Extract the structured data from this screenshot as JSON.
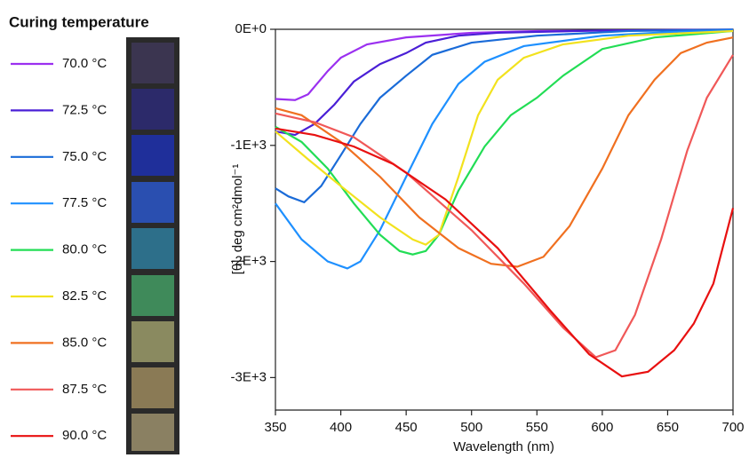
{
  "chart_data": {
    "type": "line",
    "legend_title": "Curing temperature",
    "x_label": "Wavelength (nm)",
    "y_label": "[θ]. deg cm²dmol⁻¹",
    "xlim": [
      350,
      700
    ],
    "xticks": [
      350,
      400,
      450,
      500,
      550,
      600,
      650,
      700
    ],
    "ylim": [
      -3280,
      0
    ],
    "yticks": [
      {
        "value": 0,
        "label": "0E+0"
      },
      {
        "value": -1000,
        "label": "-1E+3"
      },
      {
        "value": -2000,
        "label": "-2E+3"
      },
      {
        "value": -3000,
        "label": "-3E+3"
      }
    ],
    "legend": "left",
    "series": [
      {
        "name": "70.0 °C",
        "color": "#9b30f0",
        "x": [
          350,
          365,
          375,
          390,
          400,
          420,
          450,
          500,
          550,
          700
        ],
        "values": [
          -600,
          -610,
          -560,
          -360,
          -245,
          -130,
          -70,
          -30,
          -15,
          -5
        ]
      },
      {
        "name": "72.5 °C",
        "color": "#4a1fd6",
        "x": [
          350,
          365,
          380,
          395,
          410,
          430,
          450,
          465,
          490,
          520,
          600,
          700
        ],
        "values": [
          -880,
          -910,
          -815,
          -650,
          -450,
          -300,
          -205,
          -115,
          -55,
          -30,
          -10,
          -3
        ]
      },
      {
        "name": "75.0 °C",
        "color": "#1a6bd8",
        "x": [
          350,
          360,
          372,
          385,
          400,
          415,
          430,
          450,
          470,
          500,
          550,
          620,
          700
        ],
        "values": [
          -1370,
          -1440,
          -1490,
          -1350,
          -1085,
          -815,
          -590,
          -400,
          -220,
          -115,
          -55,
          -15,
          -3
        ]
      },
      {
        "name": "77.5 °C",
        "color": "#1e90ff",
        "x": [
          350,
          370,
          390,
          405,
          415,
          430,
          450,
          470,
          490,
          510,
          540,
          600,
          650,
          700
        ],
        "values": [
          -1500,
          -1810,
          -2000,
          -2060,
          -2000,
          -1730,
          -1270,
          -815,
          -470,
          -280,
          -145,
          -55,
          -25,
          -10
        ]
      },
      {
        "name": "80.0 °C",
        "color": "#22dd55",
        "x": [
          350,
          370,
          390,
          410,
          430,
          445,
          455,
          465,
          475,
          490,
          510,
          530,
          550,
          570,
          600,
          640,
          700
        ],
        "values": [
          -840,
          -970,
          -1200,
          -1500,
          -1770,
          -1910,
          -1940,
          -1910,
          -1770,
          -1390,
          -1010,
          -740,
          -590,
          -400,
          -170,
          -70,
          -15
        ]
      },
      {
        "name": "82.5 °C",
        "color": "#f2e21e",
        "x": [
          350,
          375,
          400,
          430,
          455,
          465,
          475,
          490,
          505,
          520,
          540,
          570,
          620,
          700
        ],
        "values": [
          -880,
          -1120,
          -1350,
          -1620,
          -1810,
          -1855,
          -1770,
          -1270,
          -740,
          -435,
          -245,
          -130,
          -55,
          -15
        ]
      },
      {
        "name": "85.0 °C",
        "color": "#f07020",
        "x": [
          350,
          370,
          400,
          430,
          460,
          490,
          515,
          535,
          555,
          575,
          600,
          620,
          640,
          660,
          680,
          700
        ],
        "values": [
          -680,
          -740,
          -970,
          -1270,
          -1620,
          -1885,
          -2020,
          -2045,
          -1960,
          -1695,
          -1200,
          -740,
          -435,
          -205,
          -115,
          -70
        ]
      },
      {
        "name": "87.5 °C",
        "color": "#f05858",
        "x": [
          350,
          380,
          410,
          450,
          500,
          540,
          570,
          595,
          610,
          625,
          645,
          665,
          680,
          700
        ],
        "values": [
          -725,
          -800,
          -930,
          -1235,
          -1730,
          -2190,
          -2570,
          -2825,
          -2765,
          -2460,
          -1810,
          -1045,
          -590,
          -220
        ]
      },
      {
        "name": "90.0 °C",
        "color": "#e81010",
        "x": [
          350,
          380,
          410,
          440,
          480,
          520,
          560,
          590,
          615,
          635,
          655,
          670,
          685,
          700
        ],
        "values": [
          -855,
          -910,
          -1010,
          -1160,
          -1465,
          -1885,
          -2420,
          -2800,
          -2990,
          -2950,
          -2765,
          -2535,
          -2190,
          -1540
        ]
      }
    ]
  }
}
